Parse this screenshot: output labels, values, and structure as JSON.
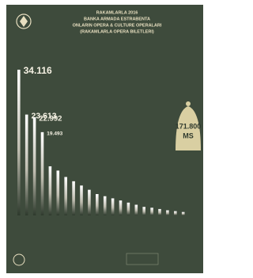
{
  "chart_data": {
    "type": "bar",
    "title": [
      "RAKAMLARLA 2016",
      "BANKA ARMADA ESTRABENTA",
      "ONLARIN OPERA & CULTURE OPERALARI",
      "(RAKAMLARLA OPERA BILETLERI)"
    ],
    "categories": [
      null,
      null,
      null,
      null,
      null,
      null,
      null,
      null,
      null,
      null,
      null,
      null,
      null,
      null,
      null,
      null,
      null,
      null,
      null,
      null,
      null,
      null
    ],
    "values": [
      34116,
      23613,
      22992,
      19493,
      11500,
      10500,
      9000,
      8000,
      7000,
      6000,
      5000,
      4500,
      4000,
      3500,
      3000,
      2500,
      2000,
      1800,
      1500,
      1200,
      1000,
      800
    ],
    "value_labels": [
      "34.116",
      "23.613",
      "22.992",
      "19.493",
      null,
      null,
      null,
      null,
      null,
      null,
      null,
      null,
      null,
      null,
      null,
      null,
      null,
      null,
      null,
      null,
      null,
      null
    ],
    "color": "#f4f0e2",
    "annotation": {
      "value": 171800,
      "label": "171.800",
      "unit": "MS"
    }
  }
}
